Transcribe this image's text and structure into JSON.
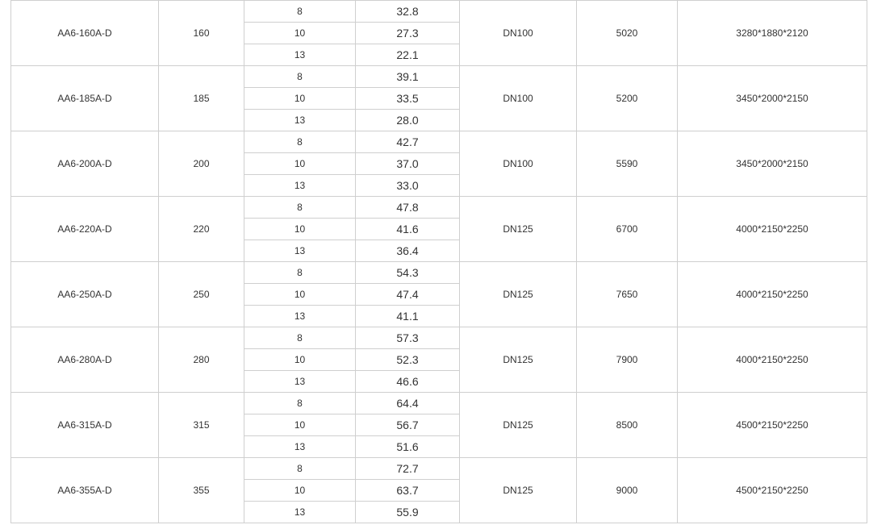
{
  "table": {
    "rows": [
      {
        "model": "AA6-160A-D",
        "power": "160",
        "sub": [
          [
            "8",
            "32.8"
          ],
          [
            "10",
            "27.3"
          ],
          [
            "13",
            "22.1"
          ]
        ],
        "pipe": "DN100",
        "weight": "5020",
        "size": "3280*1880*2120"
      },
      {
        "model": "AA6-185A-D",
        "power": "185",
        "sub": [
          [
            "8",
            "39.1"
          ],
          [
            "10",
            "33.5"
          ],
          [
            "13",
            "28.0"
          ]
        ],
        "pipe": "DN100",
        "weight": "5200",
        "size": "3450*2000*2150"
      },
      {
        "model": "AA6-200A-D",
        "power": "200",
        "sub": [
          [
            "8",
            "42.7"
          ],
          [
            "10",
            "37.0"
          ],
          [
            "13",
            "33.0"
          ]
        ],
        "pipe": "DN100",
        "weight": "5590",
        "size": "3450*2000*2150"
      },
      {
        "model": "AA6-220A-D",
        "power": "220",
        "sub": [
          [
            "8",
            "47.8"
          ],
          [
            "10",
            "41.6"
          ],
          [
            "13",
            "36.4"
          ]
        ],
        "pipe": "DN125",
        "weight": "6700",
        "size": "4000*2150*2250"
      },
      {
        "model": "AA6-250A-D",
        "power": "250",
        "sub": [
          [
            "8",
            "54.3"
          ],
          [
            "10",
            "47.4"
          ],
          [
            "13",
            "41.1"
          ]
        ],
        "pipe": "DN125",
        "weight": "7650",
        "size": "4000*2150*2250"
      },
      {
        "model": "AA6-280A-D",
        "power": "280",
        "sub": [
          [
            "8",
            "57.3"
          ],
          [
            "10",
            "52.3"
          ],
          [
            "13",
            "46.6"
          ]
        ],
        "pipe": "DN125",
        "weight": "7900",
        "size": "4000*2150*2250"
      },
      {
        "model": "AA6-315A-D",
        "power": "315",
        "sub": [
          [
            "8",
            "64.4"
          ],
          [
            "10",
            "56.7"
          ],
          [
            "13",
            "51.6"
          ]
        ],
        "pipe": "DN125",
        "weight": "8500",
        "size": "4500*2150*2250"
      },
      {
        "model": "AA6-355A-D",
        "power": "355",
        "sub": [
          [
            "8",
            "72.7"
          ],
          [
            "10",
            "63.7"
          ],
          [
            "13",
            "55.9"
          ]
        ],
        "pipe": "DN125",
        "weight": "9000",
        "size": "4500*2150*2250"
      }
    ]
  }
}
